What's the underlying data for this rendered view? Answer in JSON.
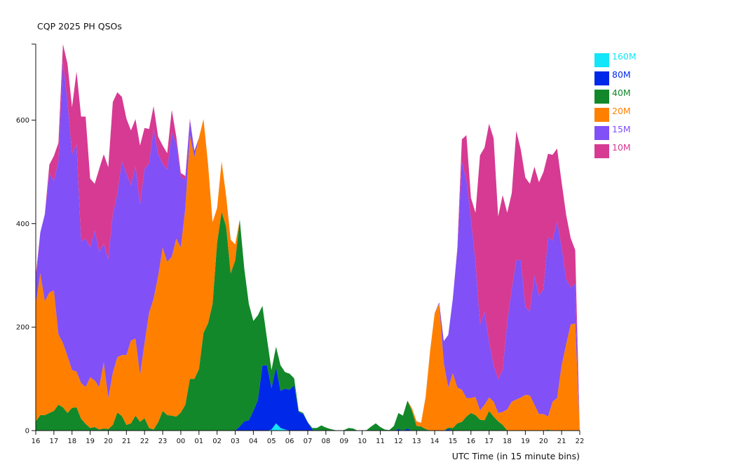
{
  "chart_data": {
    "type": "area",
    "stacked": true,
    "title": "CQP 2025 PH QSOs",
    "xlabel": "UTC Time (in 15 minute bins)",
    "ylabel": "",
    "bin_minutes": 15,
    "x_tick_labels": [
      "16",
      "17",
      "18",
      "19",
      "20",
      "21",
      "22",
      "23",
      "00",
      "01",
      "02",
      "03",
      "04",
      "05",
      "06",
      "07",
      "08",
      "09",
      "10",
      "11",
      "12",
      "13",
      "14",
      "15",
      "16",
      "17",
      "18",
      "19",
      "20",
      "21",
      "22"
    ],
    "y_ticks": [
      0,
      200,
      400,
      600
    ],
    "ylim": [
      0,
      747
    ],
    "grid": false,
    "legend_position": "top-right",
    "series": [
      {
        "name": "160M",
        "color": "#12e6f8",
        "values": [
          0,
          0,
          0,
          0,
          0,
          0,
          0,
          0,
          0,
          0,
          0,
          0,
          0,
          0,
          0,
          0,
          0,
          0,
          0,
          0,
          0,
          0,
          0,
          0,
          0,
          0,
          0,
          0,
          0,
          0,
          0,
          0,
          0,
          0,
          0,
          0,
          0,
          0,
          0,
          0,
          0,
          0,
          0,
          0,
          0,
          0,
          0,
          0,
          0,
          0,
          0,
          0,
          2,
          14,
          5,
          2,
          0,
          0,
          0,
          0,
          0,
          0,
          0,
          0,
          0,
          0,
          0,
          0,
          0,
          0,
          0,
          0,
          0,
          0,
          0,
          0,
          0,
          0,
          0,
          0,
          0,
          0,
          0,
          0,
          0,
          0,
          0,
          0,
          0,
          0,
          0,
          0,
          0,
          0,
          0,
          0,
          0,
          0,
          0,
          0,
          0,
          0,
          0,
          0,
          0,
          0,
          0,
          0,
          0,
          0,
          0,
          0,
          0,
          0,
          0,
          0,
          0,
          0,
          0,
          0,
          0
        ]
      },
      {
        "name": "80M",
        "color": "#0028e8",
        "values": [
          0,
          0,
          0,
          0,
          0,
          0,
          0,
          0,
          0,
          0,
          0,
          0,
          0,
          0,
          0,
          0,
          0,
          0,
          0,
          0,
          0,
          0,
          0,
          0,
          0,
          0,
          0,
          0,
          0,
          0,
          0,
          0,
          0,
          0,
          0,
          0,
          0,
          0,
          0,
          0,
          0,
          0,
          0,
          0,
          0,
          8,
          18,
          20,
          38,
          59,
          126,
          126,
          80,
          108,
          72,
          79,
          79,
          88,
          36,
          32,
          16,
          2,
          0,
          0,
          0,
          0,
          0,
          0,
          0,
          0,
          0,
          0,
          0,
          0,
          0,
          0,
          0,
          0,
          0,
          0,
          3,
          0,
          4,
          0,
          0,
          0,
          0,
          0,
          0,
          0,
          0,
          3,
          0,
          0,
          0,
          0,
          0,
          0,
          0,
          0,
          0,
          0,
          0,
          0,
          0,
          0,
          0,
          0,
          0,
          0,
          0,
          0,
          0,
          0,
          0,
          0,
          0,
          0,
          0,
          0,
          0
        ]
      },
      {
        "name": "40M",
        "color": "#12882a",
        "values": [
          18,
          30,
          30,
          34,
          38,
          50,
          45,
          34,
          44,
          45,
          23,
          13,
          5,
          7,
          2,
          4,
          3,
          11,
          35,
          28,
          11,
          14,
          29,
          17,
          24,
          5,
          2,
          16,
          38,
          30,
          29,
          27,
          35,
          50,
          100,
          100,
          119,
          189,
          207,
          245,
          363,
          423,
          394,
          304,
          329,
          400,
          295,
          225,
          174,
          164,
          115,
          52,
          35,
          40,
          49,
          32,
          31,
          13,
          2,
          2,
          0,
          3,
          5,
          10,
          6,
          3,
          1,
          0,
          1,
          5,
          4,
          0,
          0,
          1,
          8,
          14,
          7,
          2,
          1,
          9,
          31,
          29,
          54,
          38,
          9,
          8,
          3,
          0,
          0,
          0,
          0,
          3,
          5,
          14,
          17,
          27,
          34,
          30,
          21,
          20,
          38,
          27,
          18,
          11,
          0,
          0,
          0,
          0,
          0,
          0,
          0,
          0,
          0,
          2,
          0,
          0,
          0,
          0,
          0,
          0,
          0
        ]
      },
      {
        "name": "20M",
        "color": "#ff8000",
        "values": [
          227,
          274,
          220,
          233,
          233,
          136,
          124,
          110,
          73,
          69,
          69,
          71,
          98,
          90,
          82,
          128,
          60,
          101,
          107,
          118,
          135,
          160,
          149,
          91,
          145,
          223,
          253,
          283,
          316,
          296,
          307,
          344,
          319,
          380,
          470,
          429,
          447,
          413,
          309,
          158,
          67,
          97,
          59,
          65,
          31,
          0,
          0,
          0,
          0,
          0,
          0,
          0,
          0,
          0,
          0,
          0,
          0,
          0,
          0,
          0,
          0,
          0,
          0,
          0,
          0,
          0,
          0,
          0,
          0,
          0,
          0,
          0,
          0,
          0,
          0,
          0,
          0,
          0,
          0,
          0,
          0,
          0,
          0,
          5,
          9,
          7,
          62,
          155,
          227,
          245,
          131,
          77,
          106,
          69,
          62,
          36,
          29,
          35,
          18,
          30,
          26,
          29,
          16,
          25,
          41,
          56,
          60,
          64,
          69,
          68,
          50,
          32,
          32,
          25,
          56,
          63,
          126,
          167,
          205,
          207,
          0
        ]
      },
      {
        "name": "15M",
        "color": "#8150f6",
        "values": [
          45,
          79,
          168,
          230,
          211,
          335,
          545,
          491,
          417,
          439,
          274,
          287,
          251,
          289,
          262,
          229,
          268,
          306,
          315,
          375,
          351,
          300,
          333,
          329,
          337,
          288,
          328,
          235,
          162,
          178,
          239,
          185,
          136,
          55,
          30,
          12,
          0,
          0,
          0,
          0,
          0,
          0,
          0,
          0,
          0,
          0,
          0,
          0,
          0,
          0,
          0,
          0,
          0,
          0,
          0,
          0,
          0,
          0,
          0,
          0,
          0,
          0,
          0,
          0,
          0,
          0,
          0,
          0,
          0,
          0,
          0,
          0,
          0,
          0,
          0,
          0,
          0,
          0,
          0,
          0,
          0,
          0,
          0,
          0,
          0,
          0,
          0,
          0,
          0,
          3,
          42,
          102,
          144,
          266,
          441,
          421,
          345,
          262,
          166,
          180,
          107,
          70,
          65,
          81,
          168,
          217,
          269,
          266,
          170,
          162,
          250,
          229,
          241,
          347,
          311,
          342,
          228,
          126,
          72,
          77,
          0
        ]
      },
      {
        "name": "10M",
        "color": "#d63a92",
        "values": [
          10,
          0,
          0,
          17,
          49,
          35,
          33,
          74,
          91,
          141,
          241,
          236,
          133,
          91,
          160,
          173,
          178,
          217,
          197,
          124,
          106,
          106,
          91,
          114,
          79,
          67,
          44,
          34,
          35,
          32,
          45,
          12,
          8,
          7,
          3,
          0,
          0,
          0,
          0,
          0,
          0,
          0,
          0,
          0,
          0,
          0,
          0,
          0,
          0,
          0,
          0,
          0,
          0,
          0,
          0,
          0,
          0,
          0,
          0,
          0,
          0,
          0,
          0,
          0,
          0,
          0,
          0,
          0,
          0,
          0,
          0,
          0,
          0,
          0,
          0,
          0,
          0,
          0,
          0,
          0,
          0,
          0,
          0,
          0,
          0,
          0,
          0,
          0,
          0,
          0,
          0,
          0,
          0,
          4,
          43,
          87,
          42,
          94,
          327,
          317,
          422,
          439,
          315,
          338,
          212,
          186,
          250,
          213,
          250,
          247,
          210,
          219,
          227,
          161,
          166,
          140,
          126,
          124,
          95,
          65,
          0
        ]
      }
    ]
  }
}
